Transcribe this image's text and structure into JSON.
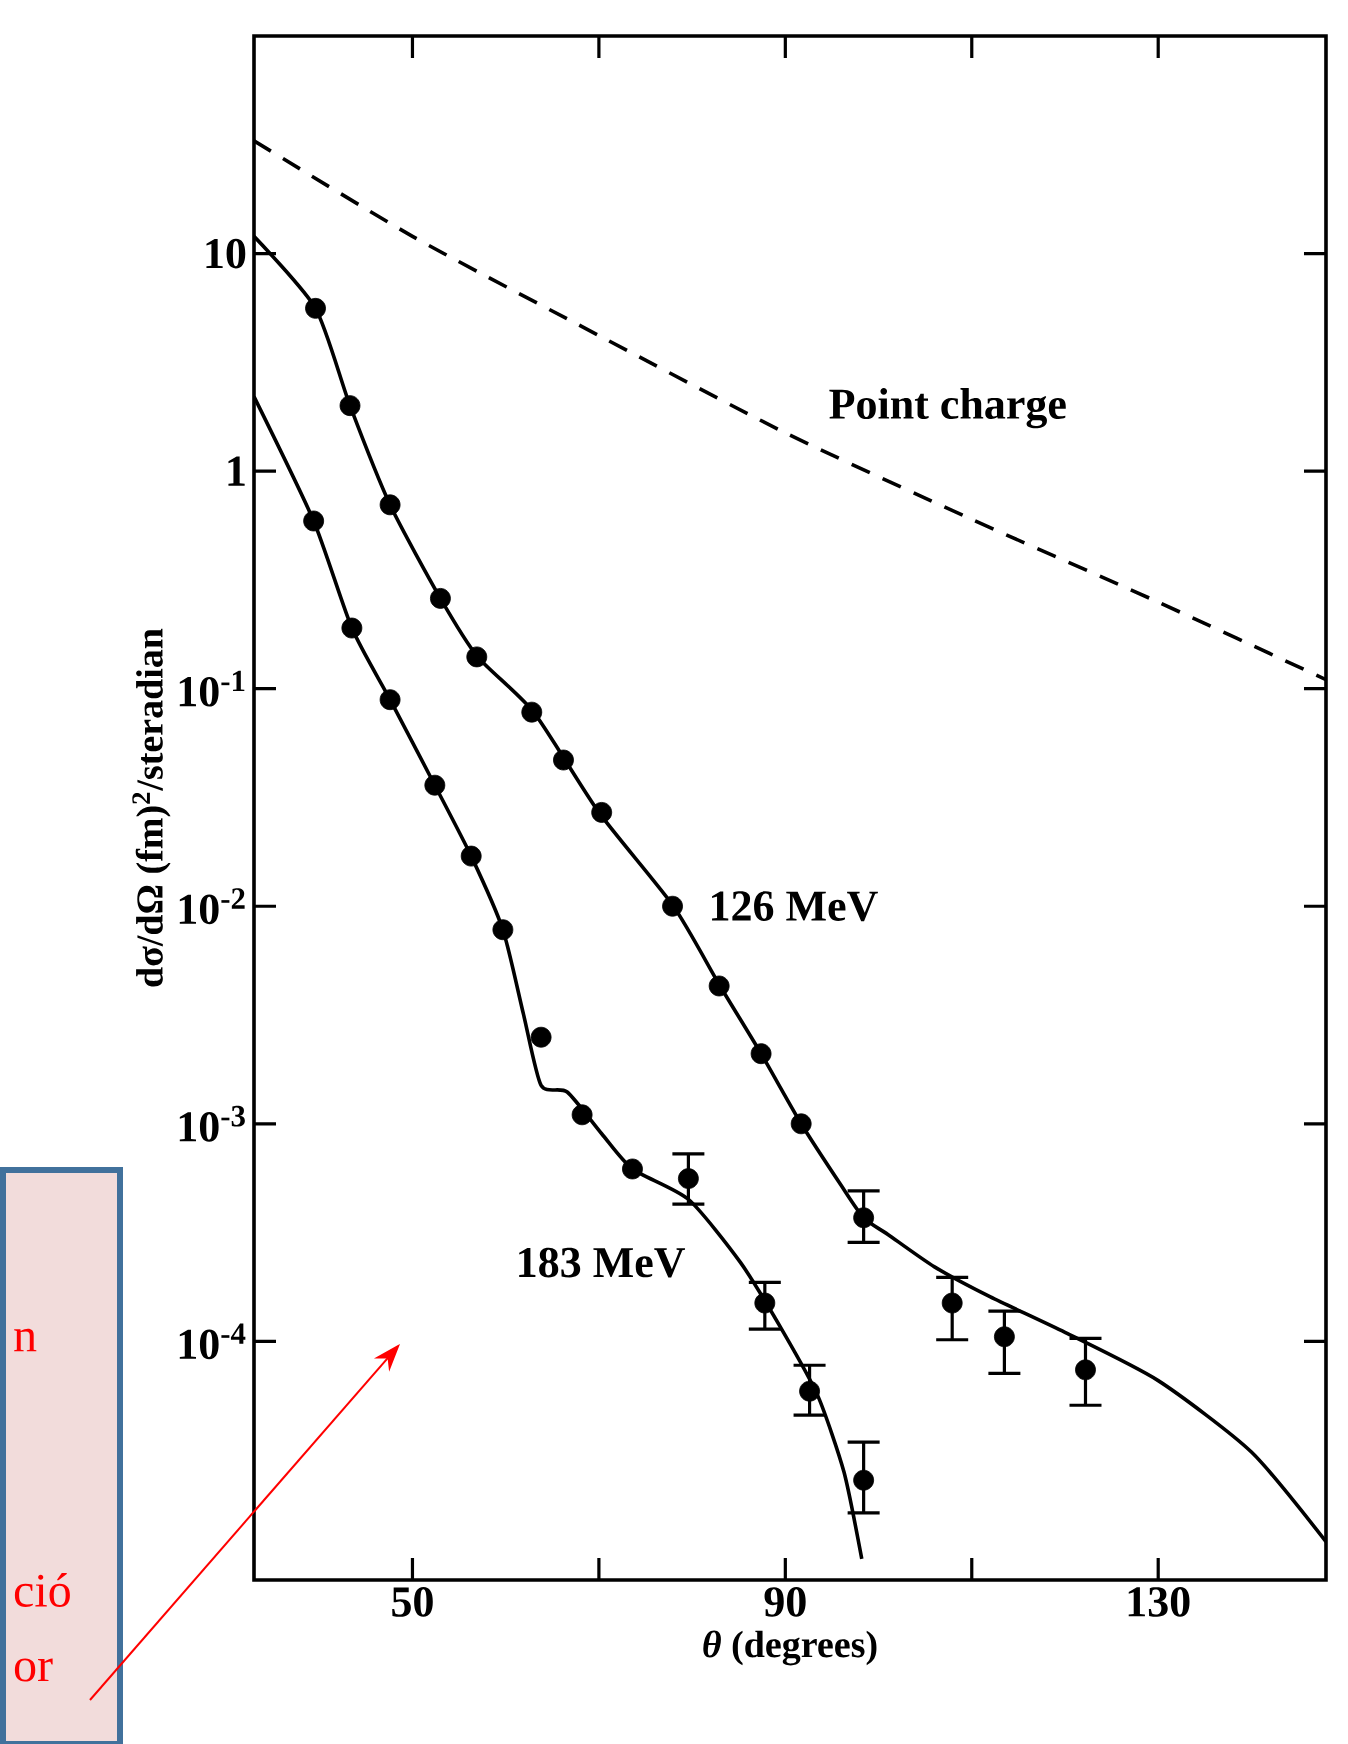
{
  "chart_data": {
    "type": "line",
    "xlabel": "*θ* (degrees)",
    "ylabel": "dσ/dΩ (fm)$^{2}$/steradian",
    "xlim": [
      33,
      148
    ],
    "ylim": [
      8e-06,
      100
    ],
    "log": "y",
    "xticks": [
      50,
      {
        "value": 70,
        "label": null
      },
      90,
      {
        "value": 110,
        "label": null
      },
      130
    ],
    "yticks": [
      {
        "value": 0.0001,
        "label": "10$^{-4}$"
      },
      {
        "value": 0.001,
        "label": "10$^{-3}$"
      },
      {
        "value": 0.01,
        "label": "10$^{-2}$"
      },
      {
        "value": 0.1,
        "label": "10$^{-1}$"
      },
      1,
      10
    ],
    "grid": false,
    "marker": "circle",
    "series": [
      {
        "type": "scatter",
        "color": "#000000",
        "x": [
          39.6,
          43.3,
          47.6,
          53.0,
          56.9,
          62.8,
          66.2,
          70.3,
          77.9,
          82.9,
          87.4,
          91.7,
          98.4,
          107.9,
          113.5,
          122.2
        ],
        "values": [
          5.6,
          2.0,
          0.7,
          0.26,
          0.14,
          0.078,
          0.047,
          0.027,
          0.01,
          0.0043,
          0.0021,
          0.001,
          0.00037,
          0.00015,
          0.000105,
          7.4e-05
        ],
        "errors": [
          null,
          null,
          null,
          null,
          null,
          null,
          null,
          null,
          null,
          null,
          null,
          null,
          [
            0.00028,
            0.0005
          ],
          [
            0.0001,
            0.0002
          ],
          [
            7e-05,
            0.00014
          ],
          [
            5e-05,
            0.000105
          ]
        ]
      },
      {
        "name": "126 MeV",
        "marker": "none",
        "color": "#000000",
        "x": [
          33,
          39.6,
          43.3,
          47.6,
          53.0,
          57.0,
          63.0,
          70.0,
          78.0,
          83.0,
          87.4,
          91.7,
          96.0,
          98.4,
          101,
          106,
          112,
          120,
          130,
          140,
          148
        ],
        "values": [
          12,
          5.6,
          2.0,
          0.7,
          0.26,
          0.14,
          0.078,
          0.027,
          0.01,
          0.0043,
          0.0021,
          0.001,
          0.00052,
          0.00037,
          0.00031,
          0.00022,
          0.00016,
          0.00011,
          6.6e-05,
          3.1e-05,
          1.2e-05
        ]
      },
      {
        "type": "scatter",
        "color": "#000000",
        "x": [
          39.4,
          43.5,
          47.6,
          52.4,
          56.3,
          59.7,
          63.8,
          68.2,
          73.6,
          79.6,
          87.8,
          92.6,
          98.4
        ],
        "values": [
          0.59,
          0.19,
          0.089,
          0.036,
          0.017,
          0.0078,
          0.0025,
          0.0011,
          0.00062,
          0.00056,
          0.00015,
          5.9e-05,
          2.3e-05
        ],
        "errors": [
          null,
          null,
          null,
          null,
          null,
          null,
          null,
          null,
          null,
          [
            0.00042,
            0.00074
          ],
          [
            0.000112,
            0.00019
          ],
          [
            4.5e-05,
            7.9e-05
          ],
          [
            1.6e-05,
            3.5e-05
          ]
        ]
      },
      {
        "name": "183 MeV",
        "marker": "none",
        "color": "#000000",
        "x": [
          33,
          39.4,
          43.5,
          47.6,
          52.4,
          56.3,
          59.7,
          61.9,
          63.8,
          66.6,
          70.3,
          73.6,
          79.6,
          85.2,
          89.8,
          93.5,
          96.3,
          98.2
        ],
        "values": [
          2.2,
          0.59,
          0.19,
          0.089,
          0.036,
          0.017,
          0.0078,
          0.0032,
          0.0015,
          0.0014,
          0.0009,
          0.00062,
          0.00045,
          0.00023,
          0.00011,
          5.6e-05,
          2.5e-05,
          1e-05
        ]
      },
      {
        "name": "Point charge",
        "marker": "none",
        "color": "#000000",
        "line_style": "dashed",
        "x": [
          33,
          50,
          70,
          90,
          110,
          130,
          148
        ],
        "values": [
          33,
          12,
          4.2,
          1.5,
          0.6,
          0.25,
          0.11
        ]
      }
    ],
    "annotations": [
      "n",
      "ció",
      "or"
    ]
  }
}
